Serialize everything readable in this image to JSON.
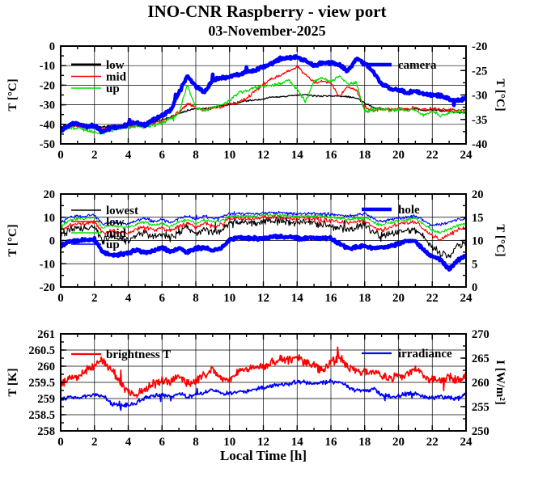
{
  "title": "INO-CNR Raspberry - view port",
  "subtitle": "03-November-2025",
  "xlabel": "Local Time [h]",
  "colors": {
    "red": "#ff0000",
    "green": "#00dd00",
    "blue": "#0000ff",
    "black": "#000000"
  },
  "chart_data": [
    {
      "type": "line",
      "grid": true,
      "sample_step_h": 0.5,
      "x": {
        "min": 0,
        "max": 24,
        "ticks": [
          0,
          2,
          4,
          6,
          8,
          10,
          12,
          14,
          16,
          18,
          20,
          22,
          24
        ],
        "tick_labels": [
          "0",
          "2",
          "4",
          "6",
          "8",
          "10",
          "12",
          "14",
          "16",
          "18",
          "20",
          "22",
          "24"
        ],
        "minor_step": 1
      },
      "axes": {
        "left": {
          "label": "T [°C]",
          "min": -50,
          "max": 0,
          "ticks": [
            0,
            -10,
            -20,
            -30,
            -40,
            -50
          ],
          "tick_labels": [
            "0",
            "-10",
            "-20",
            "-30",
            "-40",
            "-50"
          ],
          "minor_step": 5
        },
        "right": {
          "label": "T [°C]",
          "min": -40,
          "max": -20,
          "ticks": [
            -20,
            -25,
            -30,
            -35,
            -40
          ],
          "tick_labels": [
            "-20",
            "-25",
            "-30",
            "-35",
            "-40"
          ],
          "minor_step": 2.5
        }
      },
      "series": [
        {
          "name": "low",
          "axis": "left",
          "color": "#000000",
          "width": 1.3,
          "noise": 0.5,
          "values": [
            -41.5,
            -40.5,
            -40.5,
            -41,
            -40.5,
            -41.5,
            -40.5,
            -40.5,
            -40.5,
            -40.5,
            -39.5,
            -38.5,
            -37.5,
            -36.5,
            -34.5,
            -33,
            -32,
            -32,
            -31.5,
            -30.5,
            -30,
            -29,
            -28,
            -27.5,
            -27,
            -26,
            -26,
            -25.5,
            -25,
            -25,
            -25.5,
            -25.5,
            -25.5,
            -25.5,
            -26,
            -26.5,
            -29,
            -31.5,
            -32,
            -32.5,
            -32.5,
            -32.5,
            -32,
            -33,
            -32.5,
            -33,
            -33.5,
            -34,
            -34
          ]
        },
        {
          "name": "mid",
          "axis": "left",
          "color": "#ff0000",
          "width": 1.3,
          "noise": 0.9,
          "values": [
            -42,
            -41,
            -41,
            -41.5,
            -41,
            -42.5,
            -41.5,
            -41,
            -41,
            -40.5,
            -40.5,
            -39.5,
            -38.5,
            -36.5,
            -33.5,
            -29.5,
            -31.5,
            -33,
            -31.5,
            -31,
            -29.5,
            -29,
            -27,
            -23,
            -20,
            -16.5,
            -15,
            -13,
            -10.5,
            -14.5,
            -18.5,
            -18,
            -19,
            -26,
            -20.5,
            -22.5,
            -31.5,
            -33,
            -32,
            -32.5,
            -32,
            -32,
            -31.5,
            -32.5,
            -32,
            -32.5,
            -32.5,
            -33,
            -32.5
          ]
        },
        {
          "name": "up",
          "axis": "left",
          "color": "#00dd00",
          "width": 1.3,
          "noise": 1.0,
          "values": [
            -43,
            -42,
            -42,
            -43,
            -44,
            -45,
            -43,
            -42,
            -41.5,
            -41,
            -41.5,
            -40.5,
            -39.5,
            -37,
            -34.5,
            -20,
            -31.5,
            -33,
            -31.5,
            -30,
            -28,
            -24,
            -23,
            -21,
            -20.5,
            -20,
            -19,
            -17.5,
            -22,
            -28.5,
            -18,
            -16,
            -18,
            -15,
            -19.5,
            -18.5,
            -33.5,
            -32.5,
            -32,
            -33,
            -32.5,
            -33,
            -32.5,
            -35.5,
            -33,
            -36,
            -34,
            -33.5,
            -33.5
          ]
        },
        {
          "name": "camera",
          "axis": "right",
          "color": "#0000ff",
          "width": 4.5,
          "noise": 0.4,
          "values": [
            -37.4,
            -36,
            -35.8,
            -36.4,
            -36.2,
            -37.6,
            -36.6,
            -36.6,
            -36,
            -35.6,
            -36.2,
            -35,
            -34.2,
            -33.2,
            -29.6,
            -26.2,
            -28.2,
            -29.6,
            -27,
            -26.6,
            -26.2,
            -25.8,
            -25.2,
            -25,
            -24.2,
            -23.6,
            -22.6,
            -22.4,
            -22.2,
            -23,
            -24,
            -23.4,
            -23.4,
            -23.8,
            -25.2,
            -22.6,
            -23.4,
            -25.2,
            -27.8,
            -28.6,
            -29,
            -29.6,
            -29.2,
            -29.8,
            -30,
            -30.2,
            -30.8,
            -31.2,
            -30.6
          ]
        }
      ],
      "legend": [
        {
          "label": "low",
          "pos": "left",
          "row": 0,
          "sample_lw": 3
        },
        {
          "label": "mid",
          "pos": "left",
          "row": 1,
          "sample_lw": 1.5
        },
        {
          "label": "up",
          "pos": "left",
          "row": 2,
          "sample_lw": 1.5
        },
        {
          "label": "camera",
          "pos": "right",
          "row": 0,
          "sample_lw": 4.5
        }
      ]
    },
    {
      "type": "line",
      "grid": true,
      "sample_step_h": 0.5,
      "x": {
        "min": 0,
        "max": 24,
        "ticks": [
          0,
          2,
          4,
          6,
          8,
          10,
          12,
          14,
          16,
          18,
          20,
          22,
          24
        ],
        "tick_labels": [
          "0",
          "2",
          "4",
          "6",
          "8",
          "10",
          "12",
          "14",
          "16",
          "18",
          "20",
          "22",
          "24"
        ],
        "minor_step": 1
      },
      "axes": {
        "left": {
          "label": "T [°C]",
          "min": -20,
          "max": 20,
          "ticks": [
            20,
            10,
            0,
            -10,
            -20
          ],
          "tick_labels": [
            "20",
            "10",
            "0",
            "-10",
            "-20"
          ],
          "minor_step": 5
        },
        "right": {
          "label": "T [°C]",
          "min": 0,
          "max": 20,
          "ticks": [
            20,
            15,
            10,
            5,
            0
          ],
          "tick_labels": [
            "20",
            "15",
            "10",
            "5",
            "0"
          ],
          "minor_step": 2.5
        }
      },
      "series": [
        {
          "name": "lowest",
          "axis": "left",
          "color": "#000000",
          "width": 1.1,
          "noise": 2.0,
          "values": [
            2,
            4.5,
            5.5,
            5,
            6,
            0,
            2,
            0.5,
            0,
            2.5,
            3.5,
            1.5,
            3,
            1,
            3.5,
            5.5,
            2.5,
            5,
            3,
            4.5,
            8,
            8,
            8,
            7.5,
            8.5,
            8,
            8.5,
            8,
            7.5,
            8,
            7.5,
            7,
            6.5,
            5.5,
            5,
            5.5,
            6.5,
            3.5,
            2,
            3,
            4,
            4.5,
            4.5,
            1,
            -3,
            -6,
            -6.5,
            -2,
            -1.5
          ]
        },
        {
          "name": "low",
          "axis": "left",
          "color": "#ff0000",
          "width": 1.1,
          "noise": 1.1,
          "values": [
            4,
            6.5,
            7.5,
            7.5,
            8,
            3,
            4.5,
            3.5,
            3,
            5,
            6,
            4.5,
            5.5,
            4,
            6,
            7.5,
            5.5,
            7.5,
            6,
            7,
            9.5,
            9.5,
            9.5,
            9.5,
            10,
            10,
            10,
            9.5,
            9.5,
            9.5,
            9.5,
            9,
            8.5,
            8,
            7.5,
            8,
            8.5,
            6,
            4.5,
            5.5,
            7,
            7.5,
            8,
            5,
            2,
            0.5,
            2.5,
            4.5,
            5.5
          ]
        },
        {
          "name": "mid",
          "axis": "left",
          "color": "#00dd00",
          "width": 1.1,
          "noise": 0.8,
          "values": [
            6,
            8.5,
            9.5,
            9.5,
            10,
            5.5,
            6.5,
            6,
            5.5,
            7,
            8,
            6.5,
            7.5,
            6,
            8,
            9,
            7.5,
            9,
            8,
            8.5,
            10.5,
            10.5,
            10.5,
            10.5,
            11,
            11,
            11,
            10.5,
            10.5,
            10.5,
            10.5,
            10.5,
            10,
            9.5,
            9,
            9.5,
            10,
            8,
            6.5,
            7.5,
            8.5,
            9,
            9.5,
            7,
            4.5,
            3.5,
            5,
            6.5,
            7
          ]
        },
        {
          "name": "up",
          "axis": "left",
          "color": "#0000ff",
          "width": 1.1,
          "noise": 0.8,
          "values": [
            7.5,
            10,
            10.5,
            10.5,
            11,
            7,
            8,
            7.5,
            7,
            8.5,
            9.5,
            8,
            9,
            7.5,
            9.5,
            10.5,
            9,
            10.5,
            9.5,
            10,
            11.5,
            11.5,
            11.5,
            11.5,
            12,
            12,
            12,
            11.5,
            11.5,
            11.5,
            11.5,
            11.5,
            11,
            11,
            10.5,
            11,
            11.5,
            9.5,
            8,
            9,
            9.5,
            10,
            10.5,
            8.5,
            6.5,
            7,
            8,
            9,
            9.5
          ]
        },
        {
          "name": "hole",
          "axis": "right",
          "color": "#0000ff",
          "width": 4.5,
          "noise": 0.4,
          "values": [
            8.8,
            9.8,
            10,
            10,
            10.3,
            7.5,
            6.8,
            7,
            7.3,
            8,
            7.5,
            7.8,
            8.5,
            7.5,
            8.3,
            7.5,
            8.3,
            8.5,
            7.8,
            8.3,
            10.3,
            10.5,
            10.5,
            10.5,
            10.5,
            10.8,
            10.8,
            10.8,
            10.5,
            10.5,
            10.5,
            10.5,
            10.5,
            9.3,
            8.3,
            8.5,
            8.8,
            8.3,
            8.5,
            8.8,
            9.3,
            10,
            9.8,
            7.8,
            6.5,
            5.8,
            3.8,
            5.8,
            6.8
          ]
        }
      ],
      "legend": [
        {
          "label": "lowest",
          "pos": "left",
          "row": 0,
          "sample_lw": 1.4
        },
        {
          "label": "low",
          "pos": "left",
          "row": 1,
          "sample_lw": 1.4
        },
        {
          "label": "mid",
          "pos": "left",
          "row": 2,
          "sample_lw": 1.4
        },
        {
          "label": "up",
          "pos": "left",
          "row": 3,
          "sample_lw": 1.4
        },
        {
          "label": "hole",
          "pos": "right",
          "row": 0,
          "sample_lw": 4.5
        }
      ]
    },
    {
      "type": "line",
      "grid": true,
      "sample_step_h": 0.5,
      "x": {
        "min": 0,
        "max": 24,
        "ticks": [
          0,
          2,
          4,
          6,
          8,
          10,
          12,
          14,
          16,
          18,
          20,
          22,
          24
        ],
        "tick_labels": [
          "0",
          "2",
          "4",
          "6",
          "8",
          "10",
          "12",
          "14",
          "16",
          "18",
          "20",
          "22",
          "24"
        ],
        "minor_step": 1
      },
      "axes": {
        "left": {
          "label": "T [K]",
          "min": 258,
          "max": 261,
          "ticks": [
            261,
            260.5,
            260,
            259.5,
            259,
            258.5,
            258
          ],
          "tick_labels": [
            "261",
            "260.5",
            "260",
            "259.5",
            "259",
            "258.5",
            "258"
          ],
          "minor_step": 0.25
        },
        "right": {
          "label": "I [W/m²]",
          "min": 250,
          "max": 270,
          "ticks": [
            270,
            265,
            260,
            255,
            250
          ],
          "tick_labels": [
            "270",
            "265",
            "260",
            "255",
            "250"
          ],
          "minor_step": 2.5
        }
      },
      "series": [
        {
          "name": "brightness T",
          "axis": "left",
          "color": "#ff0000",
          "width": 1.7,
          "noise": 0.16,
          "values": [
            259.4,
            259.6,
            259.7,
            259.9,
            260,
            260.2,
            259.9,
            259.5,
            259.2,
            259.1,
            259.3,
            259.45,
            259.55,
            259.5,
            259.7,
            259.45,
            259.55,
            259.75,
            259.95,
            259.6,
            259.6,
            259.8,
            259.9,
            260,
            260,
            260.1,
            260.2,
            260.2,
            260.3,
            260.1,
            260,
            259.9,
            260.1,
            260.3,
            260,
            259.85,
            259.8,
            259.85,
            259.7,
            259.6,
            259.7,
            259.75,
            259.9,
            259.7,
            259.6,
            259.55,
            259.7,
            259.55,
            259.75
          ]
        },
        {
          "name": "irradiance",
          "axis": "right",
          "color": "#0000ff",
          "width": 1.7,
          "noise": 0.55,
          "values": [
            256.4,
            257,
            256.8,
            257.2,
            257.5,
            257.2,
            255.6,
            255.2,
            255.4,
            255.8,
            256.8,
            257.1,
            257.5,
            257.1,
            257.8,
            256.9,
            257.5,
            257.9,
            258.6,
            257.8,
            257.6,
            258,
            258.1,
            258.6,
            258.9,
            259.2,
            259.4,
            259.7,
            260.2,
            260,
            259.6,
            259.9,
            260.2,
            260.1,
            259.1,
            258.3,
            258.3,
            258.7,
            257.4,
            257.1,
            257.1,
            257.6,
            257.9,
            257.1,
            256.8,
            257.1,
            256.8,
            256.6,
            257.9
          ]
        }
      ],
      "legend": [
        {
          "label": "brightness T",
          "pos": "left",
          "row": 0,
          "sample_lw": 2.2
        },
        {
          "label": "irradiance",
          "pos": "right",
          "row": 0,
          "sample_lw": 2.2
        }
      ]
    }
  ]
}
